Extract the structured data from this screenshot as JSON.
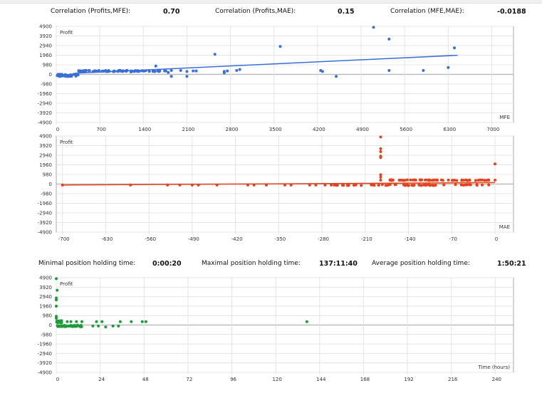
{
  "stats_top": [
    {
      "label": "Correlation (Profits,MFE):",
      "value": "0.70"
    },
    {
      "label": "Correlation (Profits,MAE):",
      "value": "0.15"
    },
    {
      "label": "Correlation (MFE,MAE):",
      "value": "-0.0188"
    }
  ],
  "stats_mid": [
    {
      "label": "Minimal position holding time:",
      "value": "0:00:20"
    },
    {
      "label": "Maximal position holding time:",
      "value": "137:11:40"
    },
    {
      "label": "Average position holding time:",
      "value": "1:50:21"
    }
  ],
  "chart_data": [
    {
      "type": "scatter",
      "ylabel": "Profit",
      "xlabel": "MFE",
      "color": "#3a6fd8",
      "xticks": [
        0,
        700,
        1400,
        2100,
        2800,
        3500,
        4200,
        4900,
        5600,
        6300,
        7000
      ],
      "yticks": [
        4900,
        3920,
        2940,
        1960,
        980,
        0,
        -980,
        -1960,
        -2940,
        -3920,
        -4900
      ],
      "xlim": [
        0,
        7350
      ],
      "ylim": [
        -4900,
        4900
      ],
      "trend": [
        [
          300,
          120
        ],
        [
          6450,
          1950
        ]
      ],
      "points": [
        [
          1600,
          850
        ],
        [
          1850,
          -200
        ],
        [
          2100,
          -200
        ],
        [
          1800,
          200
        ],
        [
          1850,
          400
        ],
        [
          2000,
          400
        ],
        [
          2100,
          300
        ],
        [
          2200,
          350
        ],
        [
          2250,
          350
        ],
        [
          2550,
          2050
        ],
        [
          2700,
          300
        ],
        [
          2700,
          150
        ],
        [
          2750,
          350
        ],
        [
          2900,
          400
        ],
        [
          2950,
          500
        ],
        [
          3600,
          2850
        ],
        [
          4250,
          400
        ],
        [
          4280,
          300
        ],
        [
          4500,
          -200
        ],
        [
          5100,
          4800
        ],
        [
          5350,
          3600
        ],
        [
          5350,
          400
        ],
        [
          5900,
          400
        ],
        [
          6300,
          700
        ],
        [
          6400,
          2700
        ],
        [
          1200,
          250
        ],
        [
          350,
          -50
        ]
      ],
      "clusters": [
        {
          "x0": 0,
          "x1": 330,
          "y": -100,
          "n": 45,
          "jitter": 120
        },
        {
          "x0": 350,
          "x1": 1800,
          "y": 350,
          "n": 80,
          "jitter": 60
        }
      ]
    },
    {
      "type": "scatter",
      "ylabel": "Profit",
      "xlabel": "MAE",
      "color": "#e2431e",
      "xticks": [
        -700,
        -630,
        -560,
        -490,
        -420,
        -350,
        -280,
        -210,
        -140,
        -70,
        0
      ],
      "yticks": [
        4900,
        3920,
        2940,
        1960,
        980,
        0,
        -980,
        -1960,
        -2940,
        -3920,
        -4900
      ],
      "xlim": [
        -710,
        30
      ],
      "ylim": [
        -4900,
        4900
      ],
      "trend": [
        [
          -700,
          -100
        ],
        [
          0,
          150
        ]
      ],
      "points": [
        [
          -700,
          -100
        ],
        [
          -590,
          -100
        ],
        [
          -530,
          -100
        ],
        [
          -510,
          -100
        ],
        [
          -490,
          -100
        ],
        [
          -480,
          -100
        ],
        [
          -450,
          -100
        ],
        [
          -400,
          -100
        ],
        [
          -390,
          -100
        ],
        [
          -370,
          -100
        ],
        [
          -340,
          -100
        ],
        [
          -330,
          -100
        ],
        [
          -300,
          -100
        ],
        [
          -290,
          -100
        ],
        [
          -275,
          -100
        ],
        [
          -265,
          -100
        ],
        [
          -185,
          4800
        ],
        [
          -185,
          3600
        ],
        [
          -185,
          3300
        ],
        [
          -185,
          2850
        ],
        [
          -185,
          2700
        ],
        [
          -185,
          950
        ],
        [
          -185,
          700
        ],
        [
          -185,
          400
        ],
        [
          0,
          2050
        ],
        [
          0,
          400
        ],
        [
          -10,
          400
        ]
      ],
      "clusters": [
        {
          "x0": -260,
          "x1": 0,
          "y": -100,
          "n": 60,
          "jitter": 50
        },
        {
          "x0": -170,
          "x1": -5,
          "y": 400,
          "n": 60,
          "jitter": 40
        }
      ]
    },
    {
      "type": "scatter",
      "ylabel": "Profit",
      "xlabel": "Time (hours)",
      "color": "#1e9a3c",
      "xticks": [
        0,
        24,
        48,
        72,
        96,
        120,
        144,
        168,
        192,
        216,
        240
      ],
      "yticks": [
        4900,
        3920,
        2940,
        1960,
        980,
        0,
        -980,
        -1960,
        -2940,
        -3920,
        -4900
      ],
      "xlim": [
        0,
        250
      ],
      "ylim": [
        -4900,
        4900
      ],
      "trend": null,
      "points": [
        [
          0,
          4800
        ],
        [
          0.5,
          3600
        ],
        [
          0,
          2800
        ],
        [
          0,
          2600
        ],
        [
          0,
          1950
        ],
        [
          0,
          900
        ],
        [
          0,
          700
        ],
        [
          6,
          350
        ],
        [
          8,
          350
        ],
        [
          11,
          350
        ],
        [
          14,
          350
        ],
        [
          22,
          350
        ],
        [
          25,
          350
        ],
        [
          35,
          350
        ],
        [
          41,
          350
        ],
        [
          47,
          350
        ],
        [
          49,
          350
        ],
        [
          20,
          -100
        ],
        [
          23,
          -100
        ],
        [
          27,
          -200
        ],
        [
          31,
          -100
        ],
        [
          34,
          -100
        ],
        [
          13,
          -150
        ],
        [
          9,
          -150
        ],
        [
          137,
          350
        ]
      ],
      "clusters": [
        {
          "x0": 0,
          "x1": 14,
          "y": -100,
          "n": 40,
          "jitter": 80
        },
        {
          "x0": 0,
          "x1": 3,
          "y": 350,
          "n": 20,
          "jitter": 100
        }
      ]
    }
  ]
}
